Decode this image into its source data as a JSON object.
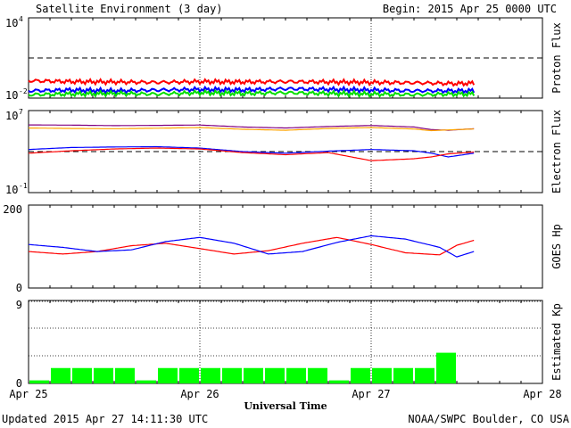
{
  "header": {
    "title": "Satellite Environment (3 day)",
    "begin": "Begin:  2015 Apr 25 0000 UTC"
  },
  "footer": {
    "updated": "Updated 2015 Apr 27 14:11:30 UTC",
    "credit": "NOAA/SWPC Boulder, CO USA"
  },
  "chart_data": [
    {
      "type": "line",
      "ylabel": "Proton Flux",
      "yscale": "log",
      "ylim": [
        0.01,
        10000
      ],
      "tick_labels": [
        {
          "base": "10",
          "exp": "4"
        },
        {
          "base": "10",
          "exp": "-2"
        }
      ],
      "threshold": 10,
      "x_days": [
        0,
        0.25,
        0.5,
        0.75,
        1.0,
        1.25,
        1.5,
        1.75,
        2.0,
        2.25,
        2.5,
        2.6
      ],
      "series": [
        {
          "color": "#ff0000",
          "values": [
            0.2,
            0.17,
            0.16,
            0.15,
            0.17,
            0.16,
            0.17,
            0.16,
            0.15,
            0.14,
            0.12,
            0.13
          ]
        },
        {
          "color": "#0000ff",
          "values": [
            0.035,
            0.04,
            0.035,
            0.04,
            0.045,
            0.04,
            0.05,
            0.045,
            0.04,
            0.035,
            0.035,
            0.035
          ]
        },
        {
          "color": "#00dd00",
          "values": [
            0.018,
            0.02,
            0.022,
            0.02,
            0.025,
            0.022,
            0.025,
            0.022,
            0.02,
            0.018,
            0.02,
            0.02
          ]
        }
      ]
    },
    {
      "type": "line",
      "ylabel": "Electron Flux",
      "yscale": "log",
      "ylim": [
        0.1,
        10000000
      ],
      "tick_labels": [
        {
          "base": "10",
          "exp": "7"
        },
        {
          "base": "10",
          "exp": "-1"
        }
      ],
      "threshold": 1000,
      "x_days": [
        0,
        0.25,
        0.5,
        0.75,
        1.0,
        1.25,
        1.5,
        1.75,
        2.0,
        2.25,
        2.35,
        2.45,
        2.6
      ],
      "series": [
        {
          "color": "#800080",
          "values": [
            400000,
            380000,
            340000,
            360000,
            390000,
            250000,
            200000,
            280000,
            350000,
            250000,
            140000,
            120000,
            170000
          ]
        },
        {
          "color": "#ffa500",
          "values": [
            200000,
            180000,
            170000,
            190000,
            220000,
            150000,
            120000,
            180000,
            220000,
            160000,
            110000,
            130000,
            160000
          ]
        },
        {
          "color": "#0000ff",
          "values": [
            1600,
            2500,
            2800,
            3000,
            2200,
            1000,
            700,
            1100,
            1600,
            1200,
            700,
            300,
            700
          ]
        },
        {
          "color": "#ff0000",
          "values": [
            700,
            1200,
            1800,
            2200,
            1800,
            800,
            500,
            800,
            130,
            200,
            300,
            600,
            900
          ]
        }
      ]
    },
    {
      "type": "line",
      "ylabel": "GOES Hp",
      "ylim": [
        0,
        200
      ],
      "tick_labels": [
        "200",
        "0"
      ],
      "x_days": [
        0,
        0.2,
        0.4,
        0.6,
        0.8,
        1.0,
        1.2,
        1.4,
        1.6,
        1.8,
        2.0,
        2.2,
        2.4,
        2.5,
        2.6
      ],
      "series": [
        {
          "color": "#ff0000",
          "values": [
            88,
            82,
            88,
            102,
            108,
            95,
            82,
            90,
            108,
            122,
            105,
            85,
            80,
            103,
            115
          ]
        },
        {
          "color": "#0000ff",
          "values": [
            105,
            98,
            88,
            92,
            112,
            122,
            108,
            82,
            88,
            110,
            126,
            118,
            98,
            75,
            88
          ]
        }
      ]
    },
    {
      "type": "bar",
      "ylabel": "Estimated Kp",
      "ylim": [
        0,
        9
      ],
      "tick_labels": [
        "9",
        "0"
      ],
      "bar_color": "#00ff00",
      "values": [
        0.33,
        1.67,
        1.67,
        1.67,
        1.67,
        0.33,
        1.67,
        1.67,
        1.67,
        1.67,
        1.67,
        1.67,
        1.67,
        1.67,
        0.33,
        1.67,
        1.67,
        1.67,
        1.67,
        3.33
      ]
    }
  ],
  "x_axis": {
    "label": "Universal Time",
    "ticks": [
      "Apr 25",
      "Apr 26",
      "Apr 27",
      "Apr 28"
    ],
    "days": 3
  }
}
